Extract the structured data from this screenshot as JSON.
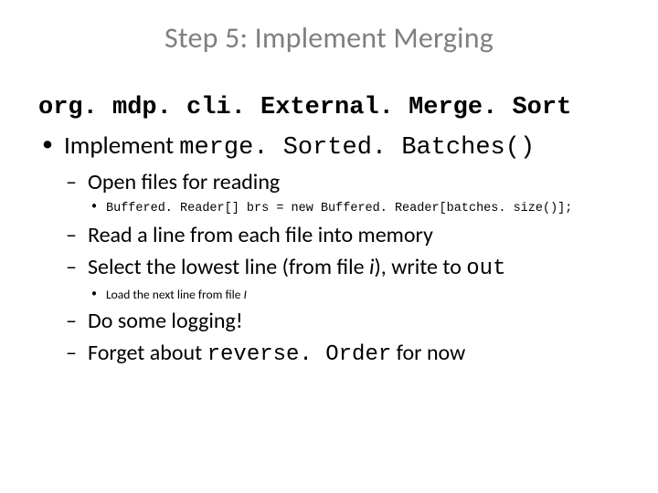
{
  "title": "Step 5: Implement Merging",
  "class_line": "org. mdp. cli. External. Merge. Sort",
  "b1_prefix": "Implement ",
  "b1_code": "merge. Sorted. Batches()",
  "b1_1": "Open files for reading",
  "b1_1_1": "Buffered. Reader[] brs = new Buffered. Reader[batches. size()];",
  "b1_2": "Read a line from each file into memory",
  "b1_3_a": "Select the lowest line (from file ",
  "b1_3_i": "i",
  "b1_3_b": "),  write to ",
  "b1_3_code": "out",
  "b1_3_1_a": "Load the next line from file ",
  "b1_3_1_i": "I",
  "b1_4": "Do some logging!",
  "b1_5_a": "Forget about ",
  "b1_5_code": "reverse. Order",
  "b1_5_b": " for now"
}
